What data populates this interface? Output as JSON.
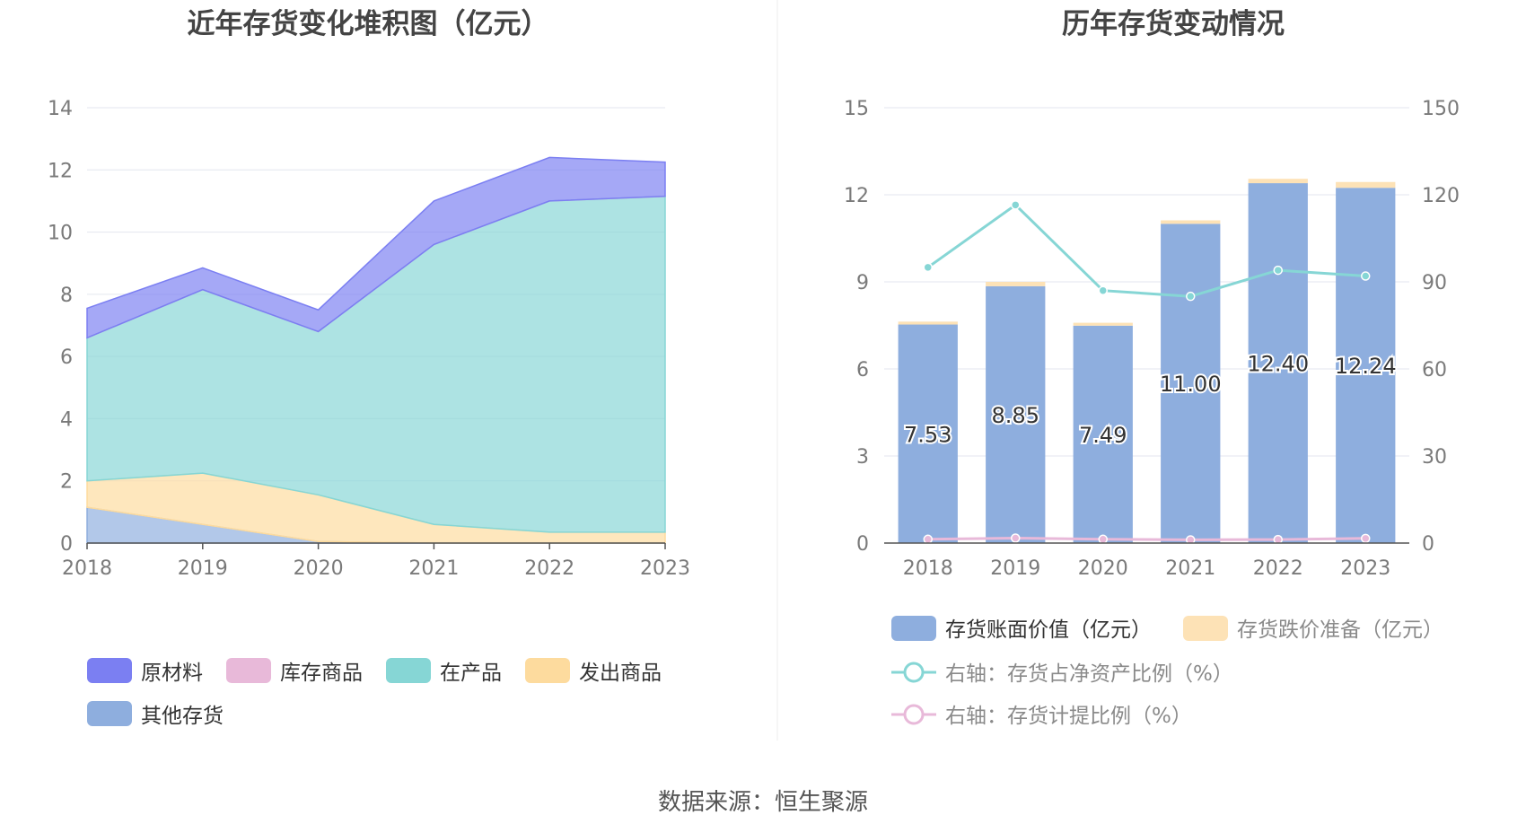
{
  "source_text": "数据来源：恒生聚源",
  "chart_data": [
    {
      "type": "area",
      "title": "近年存货变化堆积图（亿元）",
      "stacked": true,
      "x": [
        "2018",
        "2019",
        "2020",
        "2021",
        "2022",
        "2023"
      ],
      "ylim": [
        0,
        14
      ],
      "yticks": [
        0,
        2,
        4,
        6,
        8,
        10,
        12,
        14
      ],
      "grid": true,
      "series": [
        {
          "name": "其他存货",
          "color": "#8eaede",
          "values": [
            1.15,
            0.6,
            0.05,
            0,
            0,
            0
          ]
        },
        {
          "name": "发出商品",
          "color": "#fddb9e",
          "values": [
            0.85,
            1.65,
            1.5,
            0.6,
            0.35,
            0.35
          ]
        },
        {
          "name": "在产品",
          "color": "#86d6d5",
          "values": [
            4.6,
            5.9,
            5.25,
            9.0,
            10.65,
            10.8
          ]
        },
        {
          "name": "库存商品",
          "color": "#e8b9d9",
          "values": [
            0,
            0,
            0,
            0,
            0,
            0
          ]
        },
        {
          "name": "原材料",
          "color": "#7b7ff2",
          "values": [
            0.95,
            0.7,
            0.7,
            1.4,
            1.4,
            1.1
          ]
        }
      ],
      "legend": [
        "原材料",
        "库存商品",
        "在产品",
        "发出商品",
        "其他存货"
      ],
      "legend_position": "bottom"
    },
    {
      "type": "bar",
      "title": "历年存货变动情况",
      "categories": [
        "2018",
        "2019",
        "2020",
        "2021",
        "2022",
        "2023"
      ],
      "ylim_left": [
        0,
        15
      ],
      "yticks_left": [
        0,
        3,
        6,
        9,
        12,
        15
      ],
      "ylim_right": [
        0,
        150
      ],
      "yticks_right": [
        0,
        30,
        60,
        90,
        120,
        150
      ],
      "grid": true,
      "series": [
        {
          "name": "存货账面价值（亿元）",
          "kind": "bar",
          "axis": "left",
          "color": "#8eaede",
          "values": [
            7.53,
            8.85,
            7.49,
            11.0,
            12.4,
            12.24
          ],
          "labels": [
            "7.53",
            "8.85",
            "7.49",
            "11.00",
            "12.40",
            "12.24"
          ]
        },
        {
          "name": "存货跌价准备（亿元）",
          "kind": "bar",
          "axis": "left",
          "color": "#fde2b6",
          "values": [
            0.1,
            0.15,
            0.1,
            0.12,
            0.15,
            0.2
          ]
        },
        {
          "name": "右轴：存货占净资产比例（%）",
          "kind": "line",
          "axis": "right",
          "color": "#86d6d5",
          "values": [
            95,
            116.5,
            87,
            85,
            94,
            92
          ]
        },
        {
          "name": "右轴：存货计提比例（%）",
          "kind": "line",
          "axis": "right",
          "color": "#e8b9d9",
          "values": [
            1.3,
            1.7,
            1.3,
            1.1,
            1.2,
            1.6
          ]
        }
      ],
      "legend_position": "bottom"
    }
  ]
}
